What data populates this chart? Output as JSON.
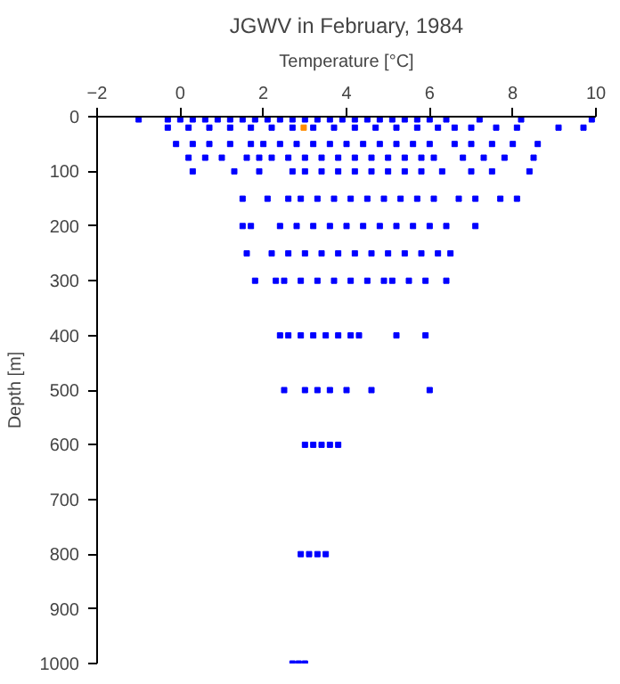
{
  "chart_data": {
    "type": "scatter",
    "title": "JGWV in February, 1984",
    "xlabel": "Temperature [°C]",
    "ylabel": "Depth [m]",
    "xlim": [
      -2,
      10
    ],
    "xticks": [
      -2,
      0,
      2,
      4,
      6,
      8,
      10
    ],
    "ylim": [
      1000,
      0
    ],
    "yticks": [
      0,
      100,
      200,
      300,
      400,
      500,
      600,
      700,
      800,
      900,
      1000
    ],
    "grid": false,
    "marker": "square",
    "series": [
      {
        "color": "#0000ff",
        "x": [
          -1.0,
          -0.3,
          0.0,
          0.3,
          0.6,
          0.9,
          1.2,
          1.5,
          1.8,
          2.1,
          2.4,
          2.7,
          3.0,
          3.3,
          3.6,
          3.9,
          4.2,
          4.5,
          4.8,
          5.1,
          5.4,
          5.7,
          6.0,
          6.4,
          7.2,
          8.2,
          9.9,
          -0.3,
          0.2,
          0.7,
          1.2,
          1.7,
          2.2,
          2.7,
          3.2,
          3.7,
          4.2,
          4.7,
          5.2,
          5.7,
          6.2,
          6.6,
          7.0,
          7.6,
          8.1,
          9.1,
          9.7,
          -0.1,
          0.3,
          0.7,
          1.2,
          1.7,
          2.0,
          2.4,
          2.8,
          3.2,
          3.6,
          4.0,
          4.4,
          4.8,
          5.2,
          5.6,
          6.0,
          6.6,
          7.0,
          7.5,
          8.0,
          8.6,
          0.2,
          0.6,
          1.0,
          1.6,
          1.9,
          2.2,
          2.6,
          3.0,
          3.4,
          3.8,
          4.2,
          4.6,
          5.0,
          5.4,
          5.8,
          6.1,
          6.8,
          7.3,
          7.8,
          8.5,
          0.3,
          1.3,
          1.9,
          2.7,
          3.0,
          3.4,
          3.8,
          4.2,
          4.6,
          5.0,
          5.4,
          5.8,
          6.3,
          7.0,
          7.5,
          8.4,
          1.5,
          2.1,
          2.6,
          2.9,
          3.3,
          3.7,
          4.1,
          4.5,
          4.9,
          5.3,
          5.7,
          6.1,
          6.7,
          7.1,
          7.7,
          8.1,
          1.5,
          1.7,
          2.4,
          2.8,
          3.2,
          3.6,
          4.0,
          4.4,
          4.8,
          5.2,
          5.6,
          6.0,
          6.4,
          7.1,
          1.6,
          2.2,
          2.6,
          3.0,
          3.4,
          3.8,
          4.2,
          4.6,
          5.0,
          5.4,
          5.8,
          6.2,
          6.5,
          1.8,
          2.3,
          2.5,
          2.9,
          3.3,
          3.7,
          4.1,
          4.5,
          4.9,
          5.1,
          5.5,
          5.9,
          6.4,
          2.4,
          2.6,
          2.9,
          3.2,
          3.5,
          3.8,
          4.1,
          4.3,
          5.2,
          5.9,
          2.5,
          3.0,
          3.3,
          3.6,
          4.0,
          4.6,
          6.0,
          3.0,
          3.2,
          3.4,
          3.6,
          3.8,
          2.9,
          3.1,
          3.3,
          3.5,
          2.7,
          2.85,
          3.0
        ],
        "values": [
          5,
          5,
          5,
          5,
          5,
          5,
          5,
          5,
          5,
          5,
          5,
          5,
          5,
          5,
          5,
          5,
          5,
          5,
          5,
          5,
          5,
          5,
          5,
          5,
          5,
          5,
          5,
          20,
          20,
          20,
          20,
          20,
          20,
          20,
          20,
          20,
          20,
          20,
          20,
          20,
          20,
          20,
          20,
          20,
          20,
          20,
          20,
          50,
          50,
          50,
          50,
          50,
          50,
          50,
          50,
          50,
          50,
          50,
          50,
          50,
          50,
          50,
          50,
          50,
          50,
          50,
          50,
          50,
          75,
          75,
          75,
          75,
          75,
          75,
          75,
          75,
          75,
          75,
          75,
          75,
          75,
          75,
          75,
          75,
          75,
          75,
          75,
          75,
          100,
          100,
          100,
          100,
          100,
          100,
          100,
          100,
          100,
          100,
          100,
          100,
          100,
          100,
          100,
          100,
          150,
          150,
          150,
          150,
          150,
          150,
          150,
          150,
          150,
          150,
          150,
          150,
          150,
          150,
          150,
          150,
          200,
          200,
          200,
          200,
          200,
          200,
          200,
          200,
          200,
          200,
          200,
          200,
          200,
          200,
          250,
          250,
          250,
          250,
          250,
          250,
          250,
          250,
          250,
          250,
          250,
          250,
          250,
          300,
          300,
          300,
          300,
          300,
          300,
          300,
          300,
          300,
          300,
          300,
          300,
          300,
          400,
          400,
          400,
          400,
          400,
          400,
          400,
          400,
          400,
          400,
          500,
          500,
          500,
          500,
          500,
          500,
          500,
          600,
          600,
          600,
          600,
          600,
          800,
          800,
          800,
          800,
          1000,
          1000,
          1000
        ]
      },
      {
        "color": "#ff8c00",
        "x": [
          2.97
        ],
        "values": [
          20
        ]
      }
    ]
  }
}
